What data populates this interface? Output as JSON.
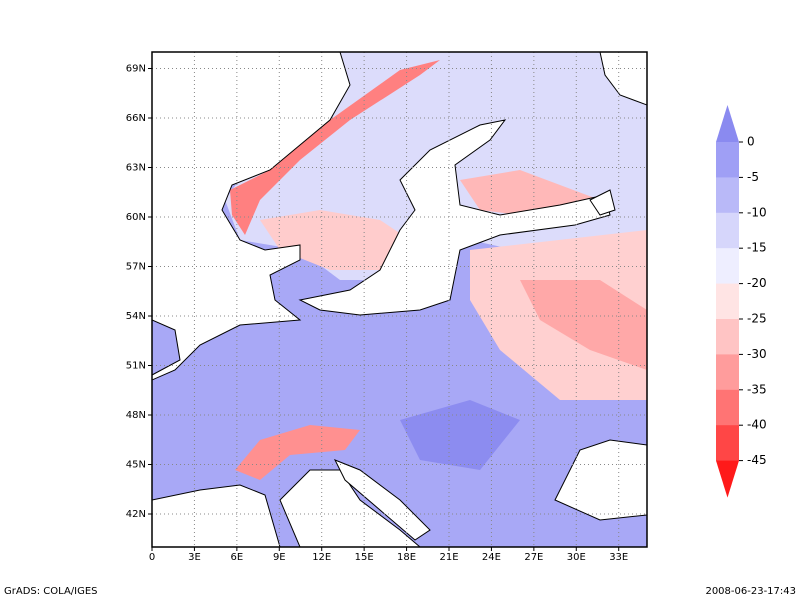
{
  "chart_data": {
    "type": "map",
    "xlim": [
      0,
      35
    ],
    "ylim": [
      40,
      70
    ],
    "xticks": [
      0,
      {
        "value": 3,
        "label": "3E"
      },
      {
        "value": 6,
        "label": "6E"
      },
      {
        "value": 9,
        "label": "9E"
      },
      {
        "value": 12,
        "label": "12E"
      },
      {
        "value": 15,
        "label": "15E"
      },
      {
        "value": 18,
        "label": "18E"
      },
      {
        "value": 21,
        "label": "21E"
      },
      {
        "value": 24,
        "label": "24E"
      },
      {
        "value": 27,
        "label": "27E"
      },
      {
        "value": 30,
        "label": "30E"
      },
      {
        "value": 33,
        "label": "33E"
      }
    ],
    "yticks": [
      {
        "value": 42,
        "label": "42N"
      },
      {
        "value": 45,
        "label": "45N"
      },
      {
        "value": 48,
        "label": "48N"
      },
      {
        "value": 51,
        "label": "51N"
      },
      {
        "value": 54,
        "label": "54N"
      },
      {
        "value": 57,
        "label": "57N"
      },
      {
        "value": 60,
        "label": "60N"
      },
      {
        "value": 63,
        "label": "63N"
      },
      {
        "value": 66,
        "label": "66N"
      },
      {
        "value": 69,
        "label": "69N"
      }
    ],
    "grid": true,
    "colorbar": {
      "levels": [
        0,
        -5,
        -10,
        -15,
        -20,
        -25,
        -30,
        -35,
        -40,
        -45
      ],
      "colors": [
        "#8a8af0",
        "#9f9ff5",
        "#b9b9f8",
        "#d6d6fb",
        "#eeeeff",
        "#ffe4e4",
        "#ffc4c4",
        "#ff9c9c",
        "#ff7474",
        "#ff4646",
        "#ff1a1a"
      ]
    },
    "footer_left": "GrADS: COLA/IGES",
    "footer_right": "2008-06-23-17:43"
  }
}
